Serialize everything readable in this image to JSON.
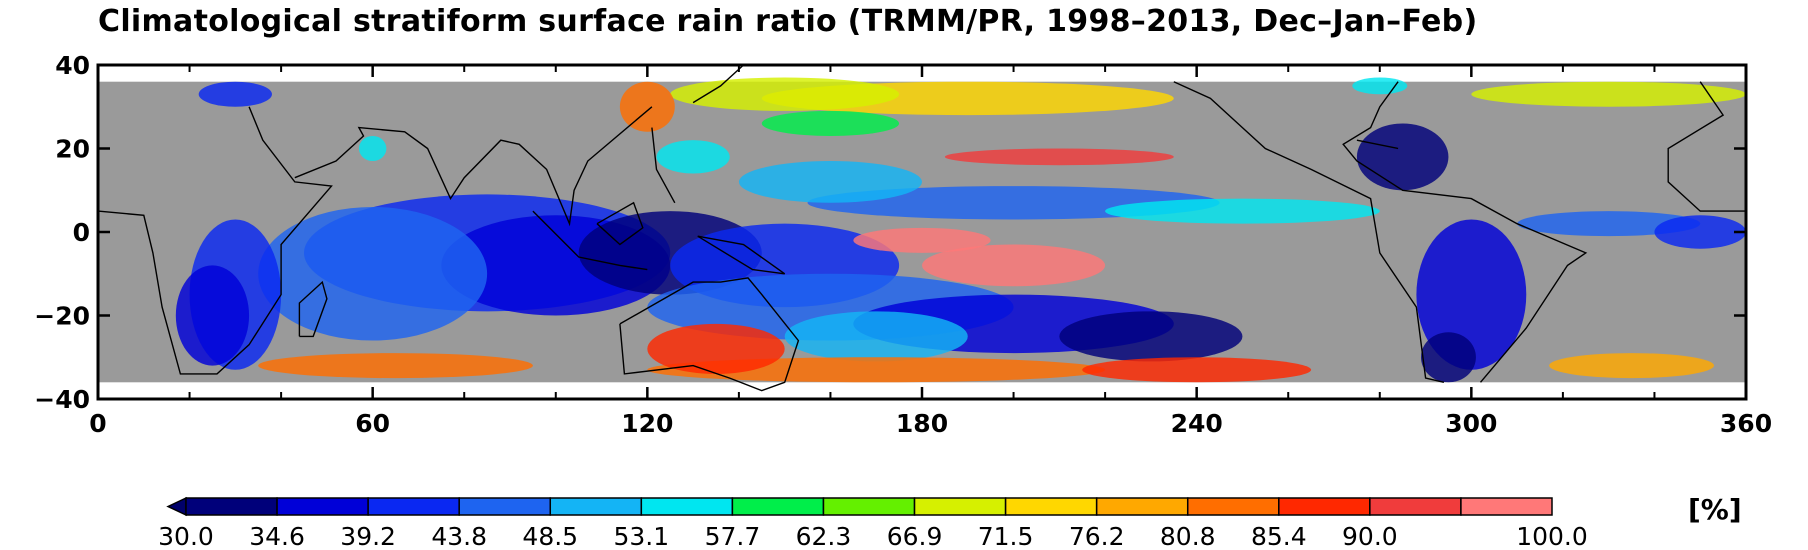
{
  "title": "Climatological stratiform surface rain ratio  (TRMM/PR, 1998–2013, Dec–Jan–Feb)",
  "map": {
    "lon_range": [
      0,
      360
    ],
    "lat_range": [
      -40,
      40
    ],
    "data_lat_range": [
      -36,
      36
    ],
    "x_ticks": [
      0,
      60,
      120,
      180,
      240,
      300,
      360
    ],
    "x_tick_labels": [
      "0",
      "60",
      "120",
      "180",
      "240",
      "300",
      "360"
    ],
    "y_ticks": [
      40,
      20,
      0,
      -20,
      -40
    ],
    "y_tick_labels": [
      "40",
      "20",
      "0",
      "−20",
      "−40"
    ],
    "background_color": "#9a9a9a",
    "no_data_color": "#ffffff"
  },
  "colorbar": {
    "unit": "[%]",
    "labels": [
      "30.0",
      "34.6",
      "39.2",
      "43.8",
      "48.5",
      "53.1",
      "57.7",
      "62.3",
      "66.9",
      "71.5",
      "76.2",
      "80.8",
      "85.4",
      "90.0",
      "100.0"
    ],
    "colors": [
      "#00007a",
      "#0000d8",
      "#0a28f2",
      "#1e64f0",
      "#14b4f5",
      "#00e6f0",
      "#00ee4a",
      "#64f000",
      "#d6f000",
      "#ffd700",
      "#ffa800",
      "#ff6e00",
      "#ff2800",
      "#f03c3c",
      "#ff7878"
    ],
    "underflow_color": "#00006a"
  }
}
